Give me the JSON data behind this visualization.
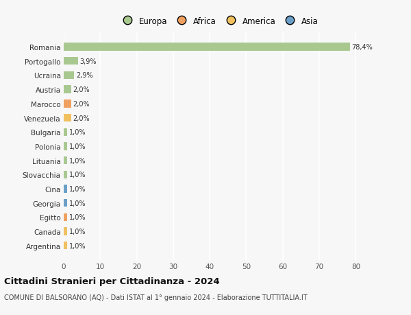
{
  "categories": [
    "Argentina",
    "Canada",
    "Egitto",
    "Georgia",
    "Cina",
    "Slovacchia",
    "Lituania",
    "Polonia",
    "Bulgaria",
    "Venezuela",
    "Marocco",
    "Austria",
    "Ucraina",
    "Portogallo",
    "Romania"
  ],
  "values": [
    1.0,
    1.0,
    1.0,
    1.0,
    1.0,
    1.0,
    1.0,
    1.0,
    1.0,
    2.0,
    2.0,
    2.0,
    2.9,
    3.9,
    78.4
  ],
  "labels": [
    "1,0%",
    "1,0%",
    "1,0%",
    "1,0%",
    "1,0%",
    "1,0%",
    "1,0%",
    "1,0%",
    "1,0%",
    "2,0%",
    "2,0%",
    "2,0%",
    "2,9%",
    "3,9%",
    "78,4%"
  ],
  "colors": [
    "#f0c060",
    "#f0c060",
    "#f0a060",
    "#6a9fc8",
    "#6a9fc8",
    "#a8c890",
    "#a8c890",
    "#a8c890",
    "#a8c890",
    "#f0c060",
    "#f0a060",
    "#a8c890",
    "#a8c890",
    "#a8c890",
    "#a8c890"
  ],
  "legend_labels": [
    "Europa",
    "Africa",
    "America",
    "Asia"
  ],
  "legend_colors": [
    "#a8c890",
    "#f0a060",
    "#f0c060",
    "#6a9fc8"
  ],
  "title": "Cittadini Stranieri per Cittadinanza - 2024",
  "subtitle": "COMUNE DI BALSORANO (AQ) - Dati ISTAT al 1° gennaio 2024 - Elaborazione TUTTITALIA.IT",
  "xlim": [
    0,
    85
  ],
  "xticks": [
    0,
    10,
    20,
    30,
    40,
    50,
    60,
    70,
    80
  ],
  "background_color": "#f7f7f7",
  "grid_color": "#ffffff",
  "bar_height": 0.55
}
